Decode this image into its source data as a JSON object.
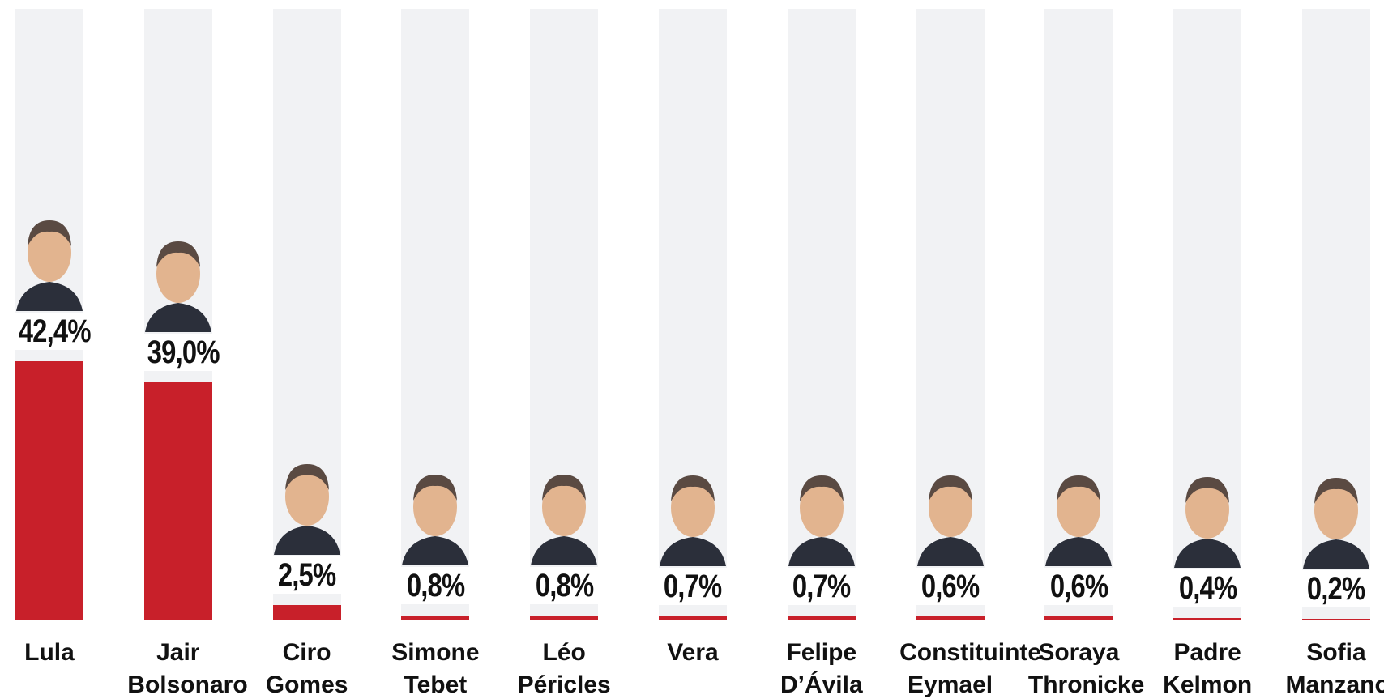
{
  "chart_data": {
    "type": "bar",
    "categories": [
      "Lula",
      "Jair Bolsonaro",
      "Ciro Gomes",
      "Simone Tebet",
      "Léo Péricles",
      "Vera",
      "Felipe D’Ávila",
      "Constituinte Eymael",
      "Soraya Thronicke",
      "Padre Kelmon",
      "Sofia Manzano"
    ],
    "values": [
      42.4,
      39.0,
      2.5,
      0.8,
      0.8,
      0.7,
      0.7,
      0.6,
      0.6,
      0.4,
      0.2
    ],
    "value_labels": [
      "42,4%",
      "39,0%",
      "2,5%",
      "0,8%",
      "0,8%",
      "0,7%",
      "0,7%",
      "0,6%",
      "0,6%",
      "0,4%",
      "0,2%"
    ],
    "color": "#c8202a",
    "track_color": "#f1f2f4",
    "ylim": [
      0,
      100
    ]
  }
}
